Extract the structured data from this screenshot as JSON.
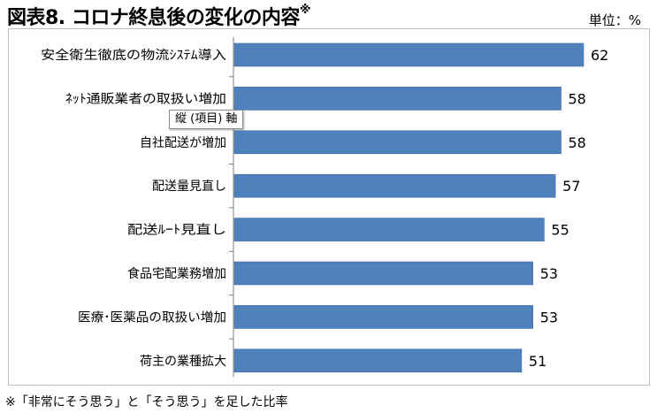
{
  "title": "図表8. コロナ終息後の変化の内容",
  "title_mark": "※",
  "unit_label": "単位：%",
  "tooltip": "縦 (項目) 軸",
  "footnote": "※「非常にそう思う」と「そう思う」を足した比率",
  "colors": {
    "bar": "#4f81bd",
    "bar_edge": "#3a6aa3",
    "axis": "#7f7f7f",
    "frame": "#bfbfbf"
  },
  "chart_data": {
    "type": "bar",
    "orientation": "horizontal",
    "categories": [
      "安全衛生徹底の物流ｼｽﾃﾑ導入",
      "ﾈｯﾄ通販業者の取扱い増加",
      "自社配送が増加",
      "配送量見直し",
      "配送ﾙｰﾄ見直し",
      "食品宅配業務増加",
      "医療･医薬品の取扱い増加",
      "荷主の業種拡大"
    ],
    "values": [
      62,
      58,
      58,
      57,
      55,
      53,
      53,
      51
    ],
    "xlim": [
      0,
      70
    ],
    "data_labels": true,
    "grid": false,
    "legend": "none"
  }
}
